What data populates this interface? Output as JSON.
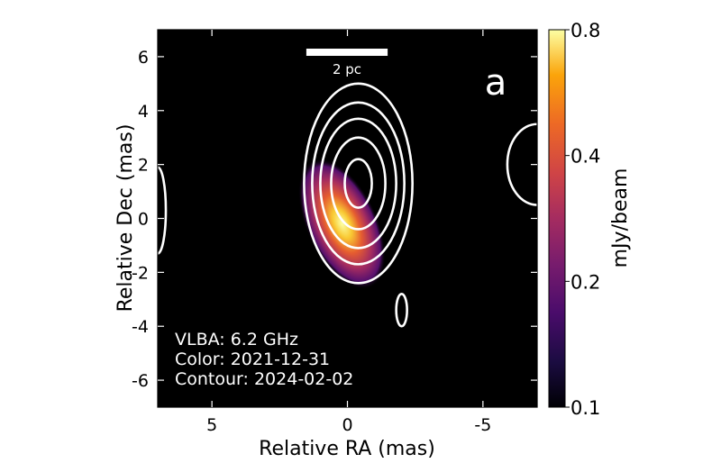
{
  "chart_data": {
    "type": "heatmap",
    "panel_label": "a",
    "xlabel": "Relative RA (mas)",
    "ylabel": "Relative Dec (mas)",
    "xlim": [
      7,
      -7
    ],
    "ylim": [
      -7,
      7
    ],
    "xticks": [
      5,
      0,
      -5
    ],
    "xtick_labels": [
      "5",
      "0",
      "-5"
    ],
    "yticks": [
      6,
      4,
      2,
      0,
      -2,
      -4,
      -6
    ],
    "ytick_labels": [
      "6",
      "4",
      "2",
      "0",
      "-2",
      "-4",
      "-6"
    ],
    "colorbar": {
      "label": "mJy/beam",
      "range": [
        0.1,
        0.8
      ],
      "ticks": [
        0.8,
        0.4,
        0.2,
        0.1
      ],
      "tick_labels": [
        "0.8",
        "0.4",
        "0.2",
        "0.1"
      ],
      "colormap": "inferno"
    },
    "scalebar": {
      "label": "2 pc",
      "length_mas": 3
    },
    "annotations": [
      "VLBA: 6.2 GHz",
      "Color: 2021-12-31",
      "Contour: 2024-02-02"
    ],
    "color_component": {
      "peak_ra": 0.2,
      "peak_dec": -0.2,
      "peak_mjy": 0.78,
      "major_axis_mas": 2.6,
      "minor_axis_mas": 1.3,
      "pa_deg": 25
    },
    "contour_center": {
      "ra": -0.4,
      "dec": 1.3
    },
    "contour_levels": [
      {
        "semi_ra_mas": 0.5,
        "semi_dec_mas": 0.9
      },
      {
        "semi_ra_mas": 1.0,
        "semi_dec_mas": 1.7
      },
      {
        "semi_ra_mas": 1.4,
        "semi_dec_mas": 2.4
      },
      {
        "semi_ra_mas": 1.7,
        "semi_dec_mas": 3.0
      },
      {
        "semi_ra_mas": 2.0,
        "semi_dec_mas": 3.7
      }
    ],
    "side_contours": [
      {
        "ra": 7.0,
        "dec": 0.3,
        "semi_ra_mas": 0.3,
        "semi_dec_mas": 1.6
      },
      {
        "ra": -7.0,
        "dec": 2.0,
        "semi_ra_mas": 1.1,
        "semi_dec_mas": 1.5
      },
      {
        "ra": -2.0,
        "dec": -3.4,
        "semi_ra_mas": 0.2,
        "semi_dec_mas": 0.6
      }
    ]
  }
}
